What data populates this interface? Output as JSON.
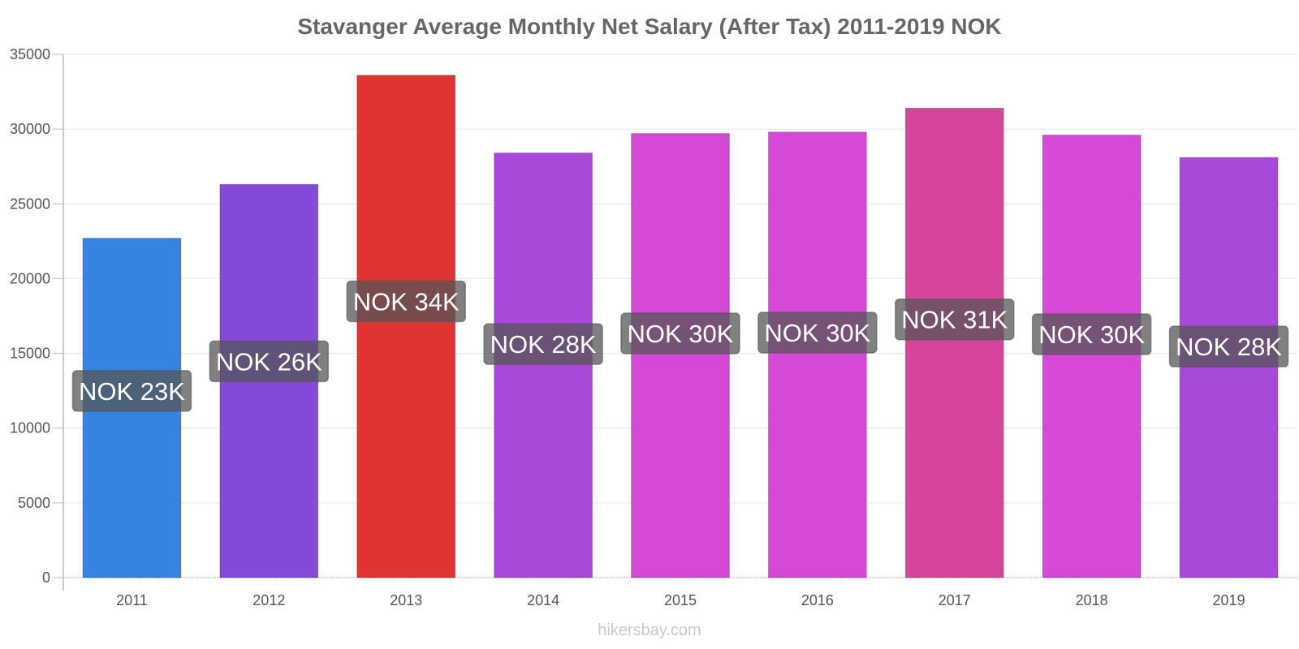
{
  "chart_data": {
    "type": "bar",
    "title": "Stavanger Average Monthly Net Salary (After Tax) 2011-2019 NOK",
    "xlabel": "",
    "ylabel": "",
    "categories": [
      "2011",
      "2012",
      "2013",
      "2014",
      "2015",
      "2016",
      "2017",
      "2018",
      "2019"
    ],
    "values": [
      22700,
      26300,
      33600,
      28400,
      29700,
      29800,
      31400,
      29600,
      28100
    ],
    "data_labels": [
      "NOK 23K",
      "NOK 26K",
      "NOK 34K",
      "NOK 28K",
      "NOK 30K",
      "NOK 30K",
      "NOK 31K",
      "NOK 30K",
      "NOK 28K"
    ],
    "bar_colors": [
      "#3683e0",
      "#8549d9",
      "#e03333",
      "#a849d9",
      "#d649d6",
      "#d649d6",
      "#d6449b",
      "#d649d6",
      "#a849d9"
    ],
    "label_box_color": "#555555",
    "ylim": [
      0,
      35000
    ],
    "yticks": [
      0,
      5000,
      10000,
      15000,
      20000,
      25000,
      30000,
      35000
    ],
    "grid": true,
    "legend": "none"
  },
  "watermark": "hikersbay.com"
}
